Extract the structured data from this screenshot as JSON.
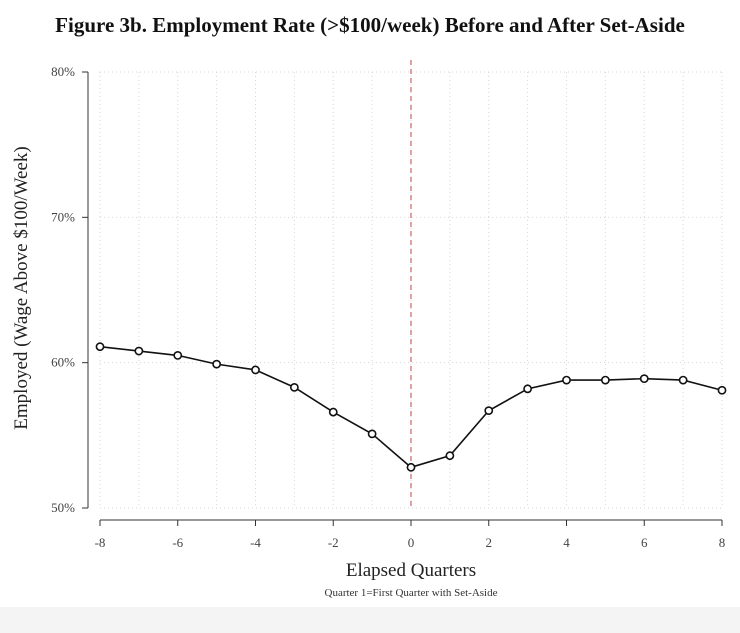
{
  "chart_data": {
    "type": "line",
    "title": "Figure 3b. Employment Rate (>$100/week) Before and After Set-Aside",
    "xlabel": "Elapsed Quarters",
    "ylabel": "Employed (Wage Above $100/Week)",
    "note": "Quarter 1=First Quarter with Set-Aside",
    "x": [
      -8,
      -7,
      -6,
      -5,
      -4,
      -3,
      -2,
      -1,
      0,
      1,
      2,
      3,
      4,
      5,
      6,
      7,
      8
    ],
    "series": [
      {
        "values": [
          61.1,
          60.8,
          60.5,
          59.9,
          59.5,
          58.3,
          56.6,
          55.1,
          52.8,
          53.6,
          56.7,
          58.2,
          58.8,
          58.8,
          58.9,
          58.8,
          58.1
        ]
      }
    ],
    "xlim": [
      -8,
      8
    ],
    "ylim": [
      50,
      80
    ],
    "xticks": [
      -8,
      -6,
      -4,
      -2,
      0,
      2,
      4,
      6,
      8
    ],
    "xtick_labels": [
      "-8",
      "-6",
      "-4",
      "-2",
      "0",
      "2",
      "4",
      "6",
      "8"
    ],
    "yticks": [
      50,
      60,
      70,
      80
    ],
    "ytick_labels": [
      "50%",
      "60%",
      "70%",
      "80%"
    ],
    "reference_line_x": 0,
    "grid": true,
    "colors": {
      "line": "#111111",
      "reference": "#d98a8a",
      "grid": "#d6d6d6"
    }
  }
}
